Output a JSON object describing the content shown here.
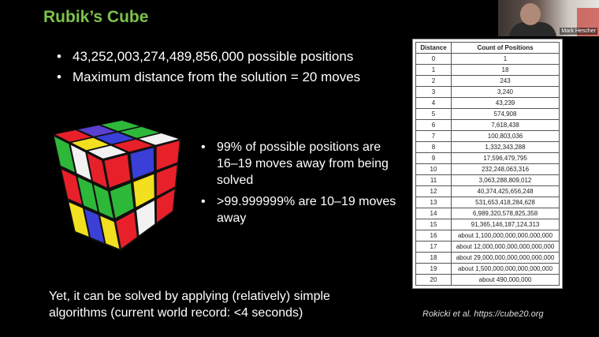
{
  "slide": {
    "title": "Rubik’s Cube",
    "bullets": [
      "43,252,003,274,489,856,000 possible positions",
      "Maximum distance from the solution = 20 moves"
    ],
    "side_bullets": [
      "99% of possible positions are 16–19 moves away from being solved",
      ">99.999999% are 10–19 moves away"
    ],
    "bottom_text": "Yet, it can be solved by applying (relatively) simple algorithms (current world record: <4 seconds)",
    "citation": "Rokicki et al. https://cube20.org",
    "title_color": "#7dc24b"
  },
  "table": {
    "headers": [
      "Distance",
      "Count of Positions"
    ],
    "rows": [
      [
        "0",
        "1"
      ],
      [
        "1",
        "18"
      ],
      [
        "2",
        "243"
      ],
      [
        "3",
        "3,240"
      ],
      [
        "4",
        "43,239"
      ],
      [
        "5",
        "574,908"
      ],
      [
        "6",
        "7,618,438"
      ],
      [
        "7",
        "100,803,036"
      ],
      [
        "8",
        "1,332,343,288"
      ],
      [
        "9",
        "17,596,479,795"
      ],
      [
        "10",
        "232,248,063,316"
      ],
      [
        "11",
        "3,063,288,809,012"
      ],
      [
        "12",
        "40,374,425,656,248"
      ],
      [
        "13",
        "531,653,418,284,628"
      ],
      [
        "14",
        "6,989,320,578,825,358"
      ],
      [
        "15",
        "91,365,146,187,124,313"
      ],
      [
        "16",
        "about 1,100,000,000,000,000,000"
      ],
      [
        "17",
        "about 12,000,000,000,000,000,000"
      ],
      [
        "18",
        "about 29,000,000,000,000,000,000"
      ],
      [
        "19",
        "about 1,500,000,000,000,000,000"
      ],
      [
        "20",
        "about 490,000,000"
      ]
    ]
  },
  "webcam": {
    "name": "Mark Hescher"
  },
  "cube": {
    "top": [
      "#e8202a",
      "#5a3fd0",
      "#2eb83a",
      "#f2e020",
      "#3a3fd8",
      "#2eb83a",
      "#f2f2f2",
      "#e8202a",
      "#f2f2f2"
    ],
    "left": [
      "#2eb83a",
      "#f2f2f2",
      "#e8202a",
      "#e8202a",
      "#2eb83a",
      "#2eb83a",
      "#f2e020",
      "#3a3fd8",
      "#f2e020"
    ],
    "right": [
      "#e8202a",
      "#3a3fd8",
      "#e8202a",
      "#2eb83a",
      "#f2e020",
      "#e8202a",
      "#e8202a",
      "#f2f2f2",
      "#e8202a"
    ]
  }
}
